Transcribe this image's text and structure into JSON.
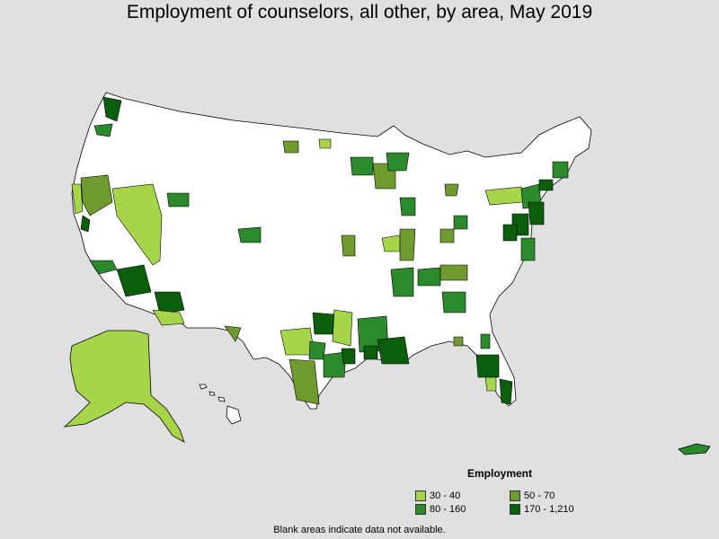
{
  "title": "Employment of counselors, all other, by area, May 2019",
  "legend": {
    "title": "Employment",
    "items": [
      {
        "label": "30 - 40",
        "color": "#a6d54a"
      },
      {
        "label": "50 - 70",
        "color": "#6e9a2e"
      },
      {
        "label": "80 - 160",
        "color": "#2b8a2b"
      },
      {
        "label": "170 - 1,210",
        "color": "#0b5e0b"
      }
    ]
  },
  "note": "Blank areas indicate data not available.",
  "colors": {
    "background": "#e0e0e0",
    "land": "#ffffff",
    "border": "#000000"
  }
}
